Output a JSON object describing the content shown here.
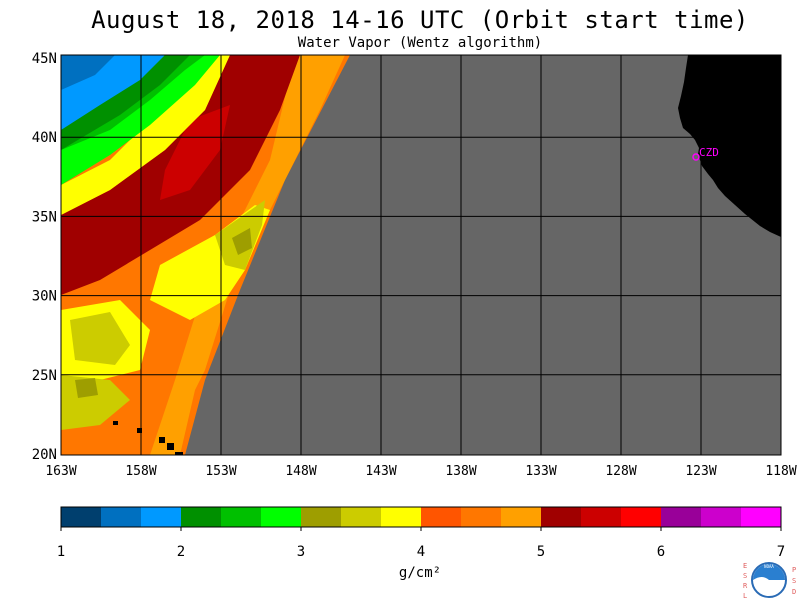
{
  "header": {
    "title": "August 18, 2018  14-16 UTC  (Orbit start time)",
    "subtitle": "Water Vapor (Wentz algorithm)"
  },
  "map": {
    "lat_labels": [
      "45N",
      "40N",
      "35N",
      "30N",
      "25N",
      "20N"
    ],
    "lon_labels": [
      "163W",
      "158W",
      "153W",
      "148W",
      "143W",
      "138W",
      "133W",
      "128W",
      "123W",
      "118W"
    ],
    "station_label": "CZD",
    "colors": {
      "no_data": "#666666",
      "land": "#000000",
      "station": "#ff00ff"
    }
  },
  "colorbar": {
    "tick_labels": [
      "1",
      "2",
      "3",
      "4",
      "5",
      "6",
      "7"
    ],
    "unit_label": "g/cm²",
    "colors": [
      "#003f6e",
      "#0070c0",
      "#0099ff",
      "#009000",
      "#00c000",
      "#00ff00",
      "#9e9e00",
      "#cccc00",
      "#ffff00",
      "#ff5500",
      "#ff7700",
      "#ffa000",
      "#a00000",
      "#cc0000",
      "#ff0000",
      "#990099",
      "#cc00cc",
      "#ff00ff"
    ]
  },
  "logo": {
    "left_letters": "ESRL",
    "right_letters": "PSD",
    "text": "NOAA"
  }
}
